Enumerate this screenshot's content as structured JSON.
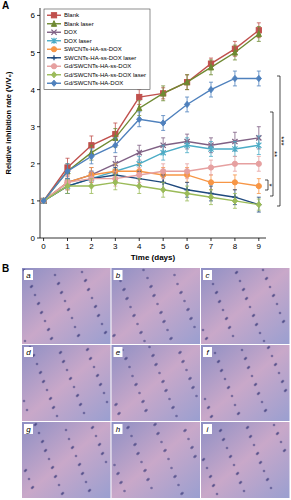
{
  "chart_data": {
    "type": "line",
    "panel_label": "A",
    "x_label": "Time (days)",
    "y_label": "Relative inhibition rate (V/V₀)",
    "x": [
      0,
      1,
      2,
      3,
      4,
      5,
      6,
      7,
      8,
      9
    ],
    "xlim": [
      -0.15,
      9.3
    ],
    "xticks": [
      0,
      1,
      2,
      3,
      4,
      5,
      6,
      7,
      8,
      9
    ],
    "ylim": [
      0,
      6.2
    ],
    "yticks": [
      0,
      1,
      2,
      3,
      4,
      5,
      6
    ],
    "legend": "top-left",
    "grid": false,
    "annotations": [
      "*",
      "**",
      "***"
    ],
    "series": [
      {
        "name": "Blank",
        "color": "#c0504d",
        "marker": "square",
        "values": [
          1,
          1.9,
          2.5,
          2.8,
          3.8,
          3.9,
          4.2,
          4.7,
          5.1,
          5.6
        ],
        "errors": [
          0,
          0.25,
          0.25,
          0.3,
          0.2,
          0.15,
          0.2,
          0.15,
          0.2,
          0.2
        ]
      },
      {
        "name": "Blank laser",
        "color": "#6f8a32",
        "marker": "triangle",
        "values": [
          1,
          1.8,
          2.3,
          2.7,
          3.5,
          3.9,
          4.2,
          4.6,
          5.0,
          5.5
        ],
        "errors": [
          0,
          0.2,
          0.2,
          0.25,
          0.2,
          0.2,
          0.2,
          0.2,
          0.2,
          0.2
        ]
      },
      {
        "name": "DOX",
        "color": "#7f6084",
        "marker": "x",
        "values": [
          1,
          1.5,
          1.7,
          2.0,
          2.3,
          2.5,
          2.6,
          2.5,
          2.6,
          2.7
        ],
        "errors": [
          0,
          0.2,
          0.2,
          0.2,
          0.2,
          0.2,
          0.2,
          0.2,
          0.25,
          0.3
        ]
      },
      {
        "name": "DOX laser",
        "color": "#4bacc6",
        "marker": "star",
        "values": [
          1,
          1.4,
          1.6,
          1.8,
          2.0,
          2.3,
          2.5,
          2.4,
          2.4,
          2.5
        ],
        "errors": [
          0,
          0.2,
          0.2,
          0.2,
          0.2,
          0.2,
          0.2,
          0.2,
          0.2,
          0.25
        ]
      },
      {
        "name": "SWCNTs-HA-ss-DOX",
        "color": "#f79646",
        "marker": "circle",
        "values": [
          1,
          1.5,
          1.7,
          1.8,
          1.8,
          1.7,
          1.7,
          1.5,
          1.5,
          1.4
        ],
        "errors": [
          0,
          0.2,
          0.2,
          0.2,
          0.2,
          0.2,
          0.2,
          0.2,
          0.2,
          0.2
        ]
      },
      {
        "name": "SWCNTs-HA-ss-DOX laser",
        "color": "#1f497d",
        "marker": "plus",
        "values": [
          1,
          1.4,
          1.6,
          1.7,
          1.6,
          1.5,
          1.3,
          1.2,
          1.1,
          0.9
        ],
        "errors": [
          0,
          0.2,
          0.2,
          0.2,
          0.2,
          0.2,
          0.2,
          0.2,
          0.2,
          0.2
        ]
      },
      {
        "name": "Gd/SWCNTs-HA-ss-DOX",
        "color": "#e6a0a0",
        "marker": "circle",
        "values": [
          1,
          1.5,
          1.6,
          1.6,
          1.7,
          1.8,
          1.8,
          1.9,
          2.0,
          2.0
        ],
        "errors": [
          0,
          0.2,
          0.2,
          0.2,
          0.2,
          0.2,
          0.2,
          0.2,
          0.2,
          0.2
        ]
      },
      {
        "name": "Gd/SWCNTs-HA-ss-DOX laser",
        "color": "#9bbb59",
        "marker": "diamond",
        "values": [
          1,
          1.4,
          1.4,
          1.5,
          1.4,
          1.3,
          1.2,
          1.1,
          1.0,
          0.9
        ],
        "errors": [
          0,
          0.2,
          0.2,
          0.2,
          0.2,
          0.2,
          0.2,
          0.2,
          0.2,
          0.15
        ]
      },
      {
        "name": "Gd/SWCNTs-HA-DOX",
        "color": "#4f81bd",
        "marker": "diamond",
        "values": [
          1,
          1.8,
          2.2,
          2.5,
          3.2,
          3.1,
          3.6,
          4.0,
          4.3,
          4.3
        ],
        "errors": [
          0,
          0.2,
          0.2,
          0.2,
          0.2,
          0.2,
          0.2,
          0.2,
          0.2,
          0.2
        ]
      }
    ]
  },
  "panel_b": {
    "panel_label": "B",
    "images": [
      "a",
      "b",
      "c",
      "d",
      "e",
      "f",
      "g",
      "h",
      "i"
    ]
  }
}
